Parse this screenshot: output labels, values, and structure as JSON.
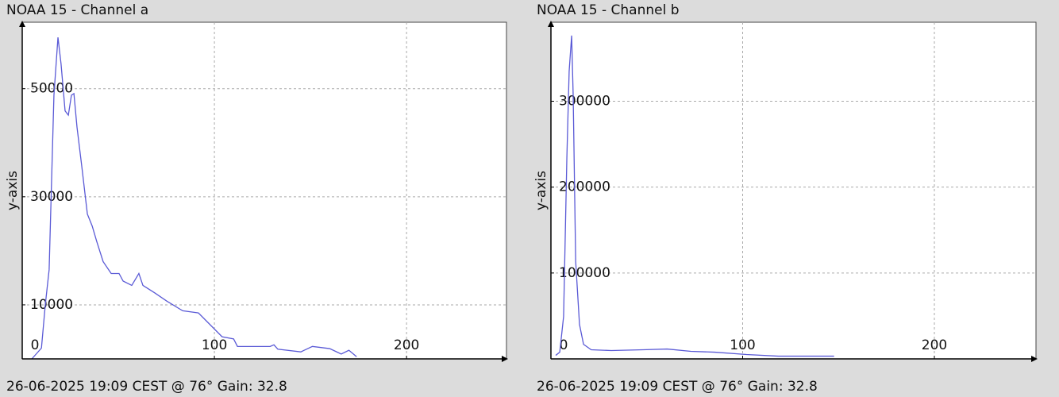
{
  "chart_data": [
    {
      "type": "line",
      "title": "NOAA 15 - Channel a",
      "y_label": "y-axis",
      "footer": "26-06-2025 19:09 CEST @ 76° Gain: 32.8",
      "xlim": [
        0,
        252
      ],
      "xticks": [
        0,
        100,
        200
      ],
      "ylim": [
        0,
        62300
      ],
      "yticks": [
        10000,
        30000,
        50000
      ],
      "grid": true,
      "series": [
        {
          "color": "#5a5ad6",
          "x": [
            5,
            10,
            12,
            14,
            16.5,
            18.6,
            20.2,
            22.3,
            24,
            25.6,
            26.9,
            28.5,
            31,
            33.9,
            36.4,
            38.8,
            42.1,
            46.3,
            50.4,
            52.5,
            57,
            60.7,
            62.8,
            69,
            75.2,
            83.5,
            91.7,
            95.9,
            104,
            110,
            112,
            129,
            131,
            133,
            145,
            151,
            160,
            166,
            170,
            174
          ],
          "values": [
            0,
            2000,
            10000,
            16500,
            48800,
            59500,
            54600,
            45900,
            45100,
            48800,
            49100,
            42900,
            35600,
            26800,
            24600,
            21700,
            18000,
            15800,
            15800,
            14400,
            13600,
            15800,
            13600,
            12200,
            10700,
            8900,
            8500,
            7000,
            4100,
            3700,
            2300,
            2300,
            2600,
            1800,
            1300,
            2300,
            1900,
            900,
            1600,
            400
          ]
        }
      ]
    },
    {
      "type": "line",
      "title": "NOAA 15 - Channel b",
      "y_label": "y-axis",
      "footer": "26-06-2025 19:09 CEST @ 76° Gain: 32.8",
      "xlim": [
        0,
        253
      ],
      "xticks": [
        0,
        100,
        200
      ],
      "ylim": [
        0,
        392000
      ],
      "yticks": [
        100000,
        200000,
        300000
      ],
      "grid": true,
      "series": [
        {
          "color": "#5a5ad6",
          "x": [
            2.5,
            4.6,
            6.6,
            8.3,
            9.5,
            10.8,
            11.6,
            12.9,
            14.9,
            17,
            21,
            31.5,
            48,
            60.6,
            73,
            85.5,
            102,
            118.7,
            131,
            147.7
          ],
          "values": [
            4100,
            7800,
            49300,
            233600,
            335000,
            376500,
            307000,
            113800,
            40100,
            17000,
            10600,
            9700,
            10600,
            11500,
            8800,
            7800,
            5100,
            3200,
            3200,
            3200
          ]
        }
      ]
    }
  ]
}
